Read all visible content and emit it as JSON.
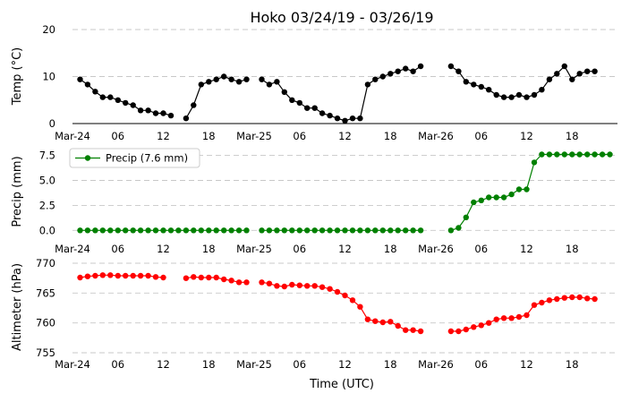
{
  "figure": {
    "title": "Hoko 03/24/19 - 03/26/19",
    "xlabel": "Time (UTC)"
  },
  "chart_data": [
    {
      "type": "line",
      "ylabel": "Temp ($^\\circ$C)",
      "ylabel_display": "Temp (°C)",
      "ylim": [
        0,
        20
      ],
      "yticks": [
        "0",
        "10",
        "20"
      ],
      "grid": true,
      "color": "#000000",
      "x_range_hours": [
        0,
        72
      ],
      "xticks": [
        {
          "h": 0,
          "label": "Mar-24"
        },
        {
          "h": 6,
          "label": "06"
        },
        {
          "h": 12,
          "label": "12"
        },
        {
          "h": 18,
          "label": "18"
        },
        {
          "h": 24,
          "label": "Mar-25"
        },
        {
          "h": 30,
          "label": "06"
        },
        {
          "h": 36,
          "label": "12"
        },
        {
          "h": 42,
          "label": "18"
        },
        {
          "h": 48,
          "label": "Mar-26"
        },
        {
          "h": 54,
          "label": "06"
        },
        {
          "h": 60,
          "label": "12"
        },
        {
          "h": 66,
          "label": "18"
        }
      ],
      "segments": [
        {
          "x": [
            1,
            2,
            3,
            4,
            5,
            6,
            7,
            8,
            9,
            10,
            11,
            12,
            13
          ],
          "y": [
            9.4,
            8.3,
            6.8,
            5.6,
            5.6,
            5.0,
            4.4,
            3.9,
            2.8,
            2.8,
            2.2,
            2.2,
            1.7
          ]
        },
        {
          "x": [
            15,
            16,
            17,
            18,
            19,
            20,
            21,
            22,
            23
          ],
          "y": [
            1.1,
            3.9,
            8.3,
            8.9,
            9.4,
            10.0,
            9.4,
            8.9,
            9.4
          ]
        },
        {
          "x": [
            25,
            26,
            27,
            28,
            29,
            30,
            31,
            32,
            33,
            34,
            35,
            36,
            37,
            38,
            39,
            40,
            41,
            42,
            43,
            44,
            45,
            46,
            47
          ],
          "y": [
            9.4,
            8.3,
            8.9,
            6.7,
            5.0,
            4.4,
            3.3,
            3.3,
            2.2,
            1.7,
            1.1,
            0.6,
            1.1,
            1.1,
            8.3,
            9.4,
            10.0,
            10.6,
            11.1,
            11.7,
            11.1,
            12.2,
            null
          ]
        },
        {
          "x": [
            50,
            51,
            52,
            53,
            54,
            55,
            56,
            57,
            58,
            59,
            60,
            61,
            62,
            63,
            64,
            65,
            66,
            67,
            68,
            69,
            70,
            71
          ],
          "y": [
            12.2,
            11.1,
            8.9,
            8.3,
            7.8,
            7.2,
            6.1,
            5.6,
            5.6,
            6.1,
            5.6,
            6.1,
            7.2,
            9.4,
            10.6,
            12.2,
            9.4,
            10.6,
            11.1,
            11.1,
            null,
            null
          ]
        }
      ]
    },
    {
      "type": "line",
      "ylabel": "Precip (mm)",
      "ylim": [
        -0.6,
        8.0
      ],
      "yticks": [
        "0.0",
        "2.5",
        "5.0",
        "7.5"
      ],
      "grid": true,
      "color": "#008000",
      "legend": {
        "label": "Precip (7.6 mm)",
        "placement": "upper-left"
      },
      "segments": [
        {
          "x": [
            1,
            2,
            3,
            4,
            5,
            6,
            7,
            8,
            9,
            10,
            11,
            12,
            13,
            14,
            15,
            16,
            17,
            18,
            19,
            20,
            21,
            22,
            23
          ],
          "y": [
            0,
            0,
            0,
            0,
            0,
            0,
            0,
            0,
            0,
            0,
            0,
            0,
            0,
            0,
            0,
            0,
            0,
            0,
            0,
            0,
            0,
            0,
            0
          ]
        },
        {
          "x": [
            25,
            26,
            27,
            28,
            29,
            30,
            31,
            32,
            33,
            34,
            35,
            36,
            37,
            38,
            39,
            40,
            41,
            42,
            43,
            44,
            45,
            46
          ],
          "y": [
            0,
            0,
            0,
            0,
            0,
            0,
            0,
            0,
            0,
            0,
            0,
            0,
            0,
            0,
            0,
            0,
            0,
            0,
            0,
            0,
            0,
            0
          ]
        },
        {
          "x": [
            50,
            51,
            52,
            53,
            54,
            55,
            56,
            57,
            58,
            59,
            60,
            61,
            62,
            63,
            64,
            65,
            66,
            67,
            68,
            69,
            70,
            71
          ],
          "y": [
            0,
            0.25,
            1.3,
            2.8,
            3.0,
            3.3,
            3.3,
            3.3,
            3.6,
            4.1,
            4.1,
            6.8,
            7.6,
            7.6,
            7.6,
            7.6,
            7.6,
            7.6,
            7.6,
            7.6,
            7.6,
            7.6
          ]
        }
      ]
    },
    {
      "type": "line",
      "ylabel": "Altimeter (hPa)",
      "ylim": [
        755,
        770
      ],
      "yticks": [
        "755",
        "760",
        "765",
        "770"
      ],
      "grid": true,
      "color": "#ff0000",
      "segments": [
        {
          "x": [
            1,
            2,
            3,
            4,
            5,
            6,
            7,
            8,
            9,
            10,
            11,
            12
          ],
          "y": [
            767.6,
            767.8,
            767.9,
            768.0,
            768.0,
            767.9,
            767.9,
            767.9,
            767.9,
            767.9,
            767.7,
            767.6
          ]
        },
        {
          "x": [
            15,
            16,
            17,
            18,
            19,
            20,
            21,
            22,
            23
          ],
          "y": [
            767.5,
            767.7,
            767.6,
            767.6,
            767.6,
            767.3,
            767.1,
            766.8,
            766.8
          ]
        },
        {
          "x": [
            25,
            26,
            27,
            28,
            29,
            30,
            31,
            32,
            33,
            34,
            35,
            36,
            37,
            38,
            39,
            40,
            41,
            42,
            43,
            44,
            45,
            46
          ],
          "y": [
            766.8,
            766.6,
            766.2,
            766.1,
            766.4,
            766.3,
            766.2,
            766.2,
            766.0,
            765.7,
            765.2,
            764.6,
            763.8,
            762.7,
            760.6,
            760.3,
            760.1,
            760.2,
            759.5,
            758.8,
            758.8,
            758.6
          ]
        },
        {
          "x": [
            50,
            51,
            52,
            53,
            54,
            55,
            56,
            57,
            58,
            59,
            60,
            61,
            62,
            63,
            64,
            65,
            66,
            67,
            68,
            69,
            70,
            71
          ],
          "y": [
            758.6,
            758.6,
            758.9,
            759.3,
            759.6,
            760.0,
            760.6,
            760.8,
            760.8,
            761.0,
            761.3,
            763.0,
            763.4,
            763.8,
            764.0,
            764.2,
            764.3,
            764.3,
            764.1,
            764.0,
            null,
            null
          ]
        }
      ]
    }
  ]
}
